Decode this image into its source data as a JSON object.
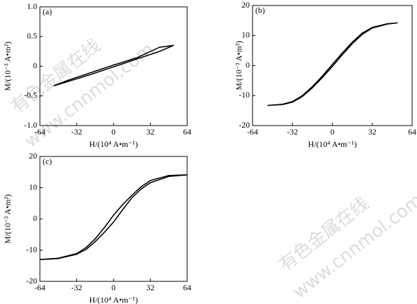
{
  "chart_data": [
    {
      "type": "line",
      "label": "(a)",
      "x_label": "H/(10⁴ A•m⁻¹)",
      "y_label": "M/(10⁻³ A•m²)",
      "x": [
        -52,
        -40,
        -20,
        0,
        20,
        40,
        52,
        40,
        20,
        0,
        -20,
        -40,
        -52
      ],
      "series": [
        {
          "color": "#000000",
          "values": [
            -0.33,
            -0.26,
            -0.14,
            -0.01,
            0.12,
            0.25,
            0.35,
            0.32,
            0.14,
            0.02,
            -0.11,
            -0.24,
            -0.33
          ]
        }
      ],
      "xlim": [
        -64,
        64
      ],
      "ylim": [
        -1,
        1
      ],
      "xticks": [
        -64,
        -32,
        0,
        32,
        64
      ],
      "yticks": [
        {
          "value": -1,
          "label": "-1.0"
        },
        -0.5,
        0,
        0.5,
        {
          "value": 1,
          "label": "1.0"
        }
      ]
    },
    {
      "type": "line",
      "label": "(b)",
      "x_label": "H/(10⁴ A•m⁻¹)",
      "y_label": "M/(10⁻³ A•m²)",
      "x": [
        -52,
        -40,
        -32,
        -24,
        -16,
        -8,
        0,
        8,
        16,
        24,
        32,
        44,
        52,
        44,
        32,
        24,
        16,
        8,
        0,
        -8,
        -16,
        -24,
        -32,
        -40,
        -52
      ],
      "series": [
        {
          "color": "#000000",
          "values": [
            -13.3,
            -13,
            -12.2,
            -10.3,
            -7.4,
            -4,
            -0.3,
            3.6,
            7.3,
            10.4,
            12.5,
            13.8,
            14.2,
            13.9,
            12.7,
            10.8,
            7.8,
            4.2,
            0.4,
            -3.5,
            -7,
            -10,
            -12,
            -12.9,
            -13.3
          ]
        }
      ],
      "xlim": [
        -64,
        64
      ],
      "ylim": [
        -20,
        20
      ],
      "xticks": [
        -64,
        -32,
        0,
        32,
        64
      ],
      "yticks": [
        -20,
        -10,
        0,
        10,
        20
      ]
    },
    {
      "type": "line",
      "label": "(c)",
      "x_label": "H/(10⁴ A•m⁻¹)",
      "y_label": "M/(10⁻³ A•m²)",
      "x": [
        -64,
        -48,
        -32,
        -24,
        -16,
        -8,
        0,
        8,
        16,
        24,
        32,
        48,
        64,
        48,
        32,
        24,
        16,
        8,
        0,
        -8,
        -16,
        -24,
        -32,
        -48,
        -64
      ],
      "series": [
        {
          "color": "#000000",
          "values": [
            -13,
            -12.7,
            -11.3,
            -9.8,
            -7.3,
            -4.3,
            -1,
            3,
            6.8,
            9.6,
            11.6,
            13.6,
            14.1,
            13.9,
            12.3,
            10.3,
            7.6,
            4.6,
            1.2,
            -2.8,
            -6.4,
            -9.2,
            -11.1,
            -12.6,
            -13
          ]
        }
      ],
      "xlim": [
        -64,
        64
      ],
      "ylim": [
        -20,
        20
      ],
      "xticks": [
        -64,
        -32,
        0,
        32,
        64
      ],
      "yticks": [
        -20,
        -10,
        0,
        10,
        20
      ]
    }
  ],
  "watermark": {
    "cn": "有色金属在线",
    "url": "www.cnnmol.com"
  }
}
